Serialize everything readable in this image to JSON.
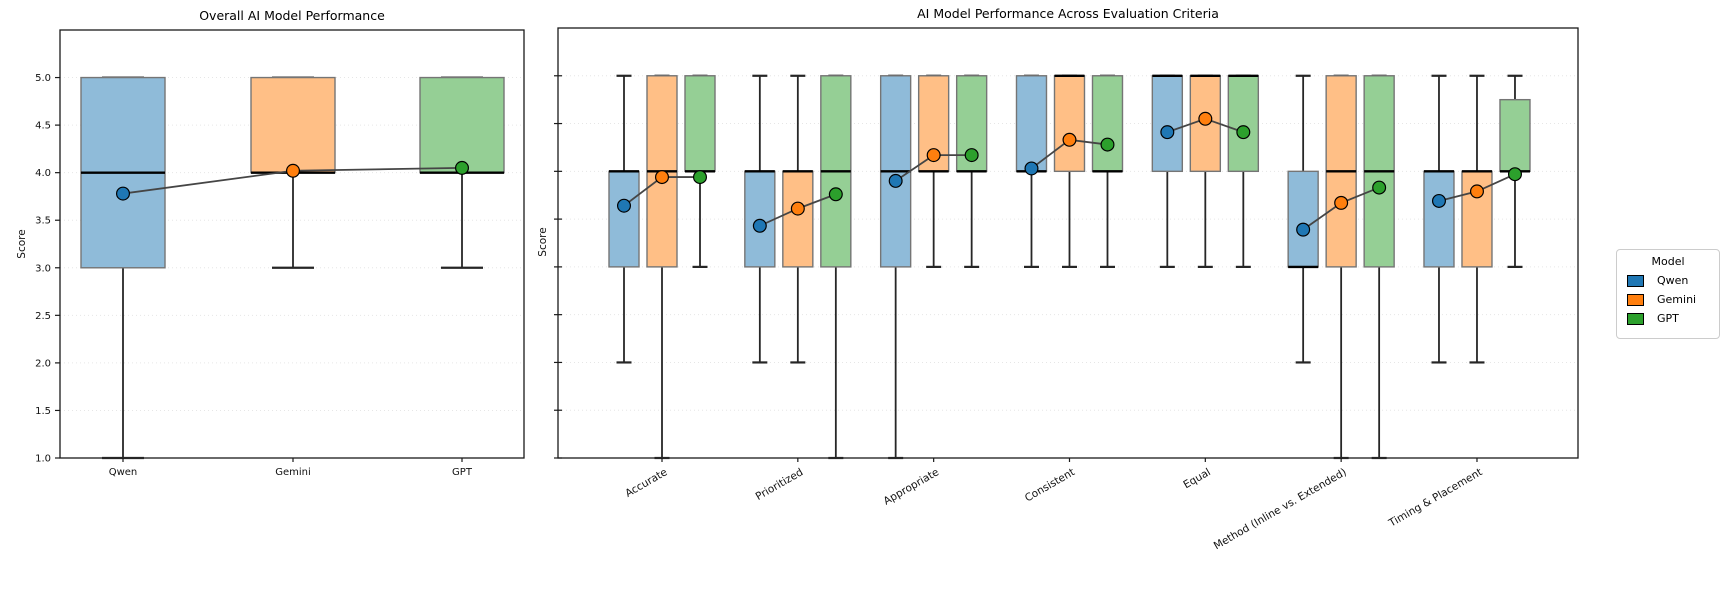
{
  "chart_data": [
    {
      "type": "box",
      "title": "Overall AI Model Performance",
      "ylabel": "Score",
      "ylim": [
        1.0,
        5.5
      ],
      "yticks": [
        1.0,
        1.5,
        2.0,
        2.5,
        3.0,
        3.5,
        4.0,
        4.5,
        5.0
      ],
      "ytick_labels": [
        "1.0",
        "1.5",
        "2.0",
        "2.5",
        "3.0",
        "3.5",
        "4.0",
        "4.5",
        "5.0"
      ],
      "show_ytick_labels": true,
      "grid": true,
      "xtick_rotation": 0,
      "categories": [
        "Qwen",
        "Gemini",
        "GPT"
      ],
      "boxes": [
        {
          "model": "Qwen",
          "whisker_low": 1.0,
          "q1": 3.0,
          "median": 4.0,
          "q3": 5.0,
          "whisker_high": 5.0,
          "mean": 3.78
        },
        {
          "model": "Gemini",
          "whisker_low": 3.0,
          "q1": 4.0,
          "median": 4.0,
          "q3": 5.0,
          "whisker_high": 5.0,
          "mean": 4.02
        },
        {
          "model": "GPT",
          "whisker_low": 3.0,
          "q1": 4.0,
          "median": 4.0,
          "q3": 5.0,
          "whisker_high": 5.0,
          "mean": 4.05
        }
      ]
    },
    {
      "type": "grouped_box",
      "title": "AI Model Performance Across Evaluation Criteria",
      "ylabel": "Score",
      "ylim": [
        1.0,
        5.5
      ],
      "yticks": [
        1.0,
        1.5,
        2.0,
        2.5,
        3.0,
        3.5,
        4.0,
        4.5,
        5.0
      ],
      "show_ytick_labels": false,
      "grid": true,
      "xtick_rotation": 30,
      "categories": [
        "Accurate",
        "Prioritized",
        "Appropriate",
        "Consistent",
        "Equal",
        "Method (Inline vs. Extended)",
        "Timing & Placement"
      ],
      "series": [
        {
          "name": "Qwen",
          "boxes": [
            {
              "category": "Accurate",
              "whisker_low": 2.0,
              "q1": 3.0,
              "median": 4.0,
              "q3": 4.0,
              "whisker_high": 5.0,
              "mean": 3.64
            },
            {
              "category": "Prioritized",
              "whisker_low": 2.0,
              "q1": 3.0,
              "median": 4.0,
              "q3": 4.0,
              "whisker_high": 5.0,
              "mean": 3.43
            },
            {
              "category": "Appropriate",
              "whisker_low": 1.0,
              "q1": 3.0,
              "median": 4.0,
              "q3": 5.0,
              "whisker_high": 5.0,
              "mean": 3.9
            },
            {
              "category": "Consistent",
              "whisker_low": 3.0,
              "q1": 4.0,
              "median": 4.0,
              "q3": 5.0,
              "whisker_high": 5.0,
              "mean": 4.03
            },
            {
              "category": "Equal",
              "whisker_low": 3.0,
              "q1": 4.0,
              "median": 5.0,
              "q3": 5.0,
              "whisker_high": 5.0,
              "mean": 4.41
            },
            {
              "category": "Method (Inline vs. Extended)",
              "whisker_low": 2.0,
              "q1": 3.0,
              "median": 3.0,
              "q3": 4.0,
              "whisker_high": 5.0,
              "mean": 3.39
            },
            {
              "category": "Timing & Placement",
              "whisker_low": 2.0,
              "q1": 3.0,
              "median": 4.0,
              "q3": 4.0,
              "whisker_high": 5.0,
              "mean": 3.69
            }
          ]
        },
        {
          "name": "Gemini",
          "boxes": [
            {
              "category": "Accurate",
              "whisker_low": 1.0,
              "q1": 3.0,
              "median": 4.0,
              "q3": 5.0,
              "whisker_high": 5.0,
              "mean": 3.94
            },
            {
              "category": "Prioritized",
              "whisker_low": 2.0,
              "q1": 3.0,
              "median": 4.0,
              "q3": 4.0,
              "whisker_high": 5.0,
              "mean": 3.61
            },
            {
              "category": "Appropriate",
              "whisker_low": 3.0,
              "q1": 4.0,
              "median": 4.0,
              "q3": 5.0,
              "whisker_high": 5.0,
              "mean": 4.17
            },
            {
              "category": "Consistent",
              "whisker_low": 3.0,
              "q1": 4.0,
              "median": 5.0,
              "q3": 5.0,
              "whisker_high": 5.0,
              "mean": 4.33
            },
            {
              "category": "Equal",
              "whisker_low": 3.0,
              "q1": 4.0,
              "median": 5.0,
              "q3": 5.0,
              "whisker_high": 5.0,
              "mean": 4.55
            },
            {
              "category": "Method (Inline vs. Extended)",
              "whisker_low": 1.0,
              "q1": 3.0,
              "median": 4.0,
              "q3": 5.0,
              "whisker_high": 5.0,
              "mean": 3.67
            },
            {
              "category": "Timing & Placement",
              "whisker_low": 2.0,
              "q1": 3.0,
              "median": 4.0,
              "q3": 4.0,
              "whisker_high": 5.0,
              "mean": 3.79
            }
          ]
        },
        {
          "name": "GPT",
          "boxes": [
            {
              "category": "Accurate",
              "whisker_low": 3.0,
              "q1": 4.0,
              "median": 4.0,
              "q3": 5.0,
              "whisker_high": 5.0,
              "mean": 3.94
            },
            {
              "category": "Prioritized",
              "whisker_low": 1.0,
              "q1": 3.0,
              "median": 4.0,
              "q3": 5.0,
              "whisker_high": 5.0,
              "mean": 3.76
            },
            {
              "category": "Appropriate",
              "whisker_low": 3.0,
              "q1": 4.0,
              "median": 4.0,
              "q3": 5.0,
              "whisker_high": 5.0,
              "mean": 4.17
            },
            {
              "category": "Consistent",
              "whisker_low": 3.0,
              "q1": 4.0,
              "median": 4.0,
              "q3": 5.0,
              "whisker_high": 5.0,
              "mean": 4.28
            },
            {
              "category": "Equal",
              "whisker_low": 3.0,
              "q1": 4.0,
              "median": 5.0,
              "q3": 5.0,
              "whisker_high": 5.0,
              "mean": 4.41
            },
            {
              "category": "Method (Inline vs. Extended)",
              "whisker_low": 1.0,
              "q1": 3.0,
              "median": 4.0,
              "q3": 5.0,
              "whisker_high": 5.0,
              "mean": 3.83
            },
            {
              "category": "Timing & Placement",
              "whisker_low": 3.0,
              "q1": 4.0,
              "median": 4.0,
              "q3": 4.75,
              "whisker_high": 5.0,
              "mean": 3.97
            }
          ]
        }
      ]
    }
  ],
  "legend": {
    "title": "Model",
    "entries": [
      {
        "label": "Qwen",
        "color": "#1f77b4"
      },
      {
        "label": "Gemini",
        "color": "#ff7f0e"
      },
      {
        "label": "GPT",
        "color": "#2ca02c"
      }
    ]
  },
  "colors": {
    "box_fill": {
      "Qwen": "#8fbbd9",
      "Gemini": "#ffbf86",
      "GPT": "#95cf95"
    },
    "marker": {
      "Qwen": "#1f77b4",
      "Gemini": "#ff7f0e",
      "GPT": "#2ca02c"
    },
    "box_edge": "#757575",
    "median": "#000000",
    "whisker": "#262626",
    "grid": "#e6e6e6",
    "mean_line": "#454545",
    "spine": "#1a1a1a"
  }
}
